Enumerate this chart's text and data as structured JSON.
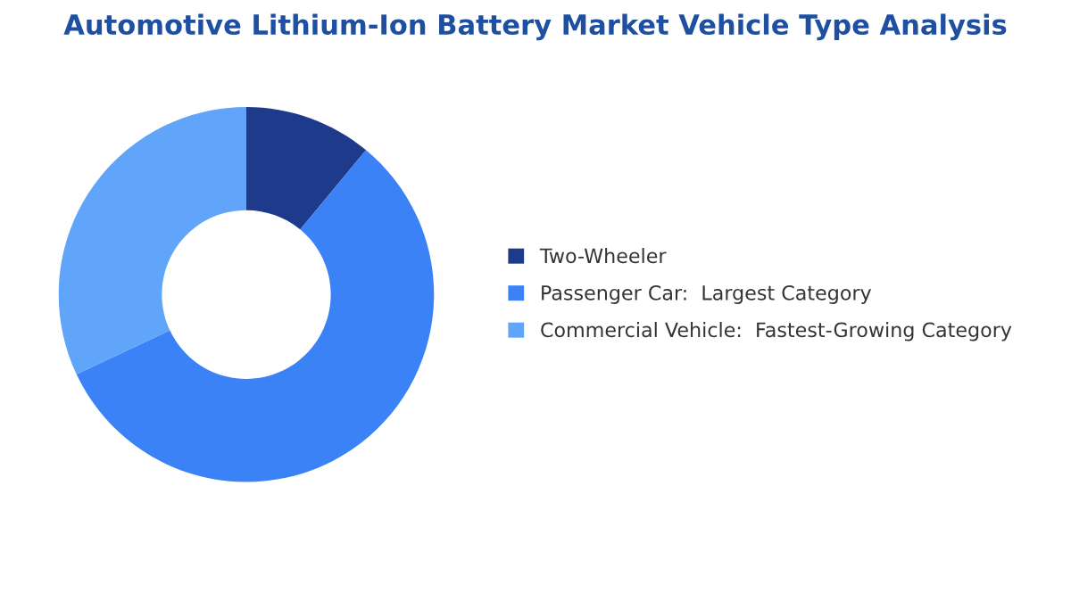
{
  "chart_data": {
    "type": "donut",
    "title": "Automotive Lithium-Ion Battery Market Vehicle Type Analysis",
    "categories": [
      "Two-Wheeler",
      "Passenger Car:  Largest Category",
      "Commercial Vehicle:  Fastest-Growing Category"
    ],
    "values": [
      11,
      57,
      32
    ],
    "colors": [
      "#1e3a8a",
      "#3b82f6",
      "#60a5fa"
    ],
    "legend": "right"
  }
}
